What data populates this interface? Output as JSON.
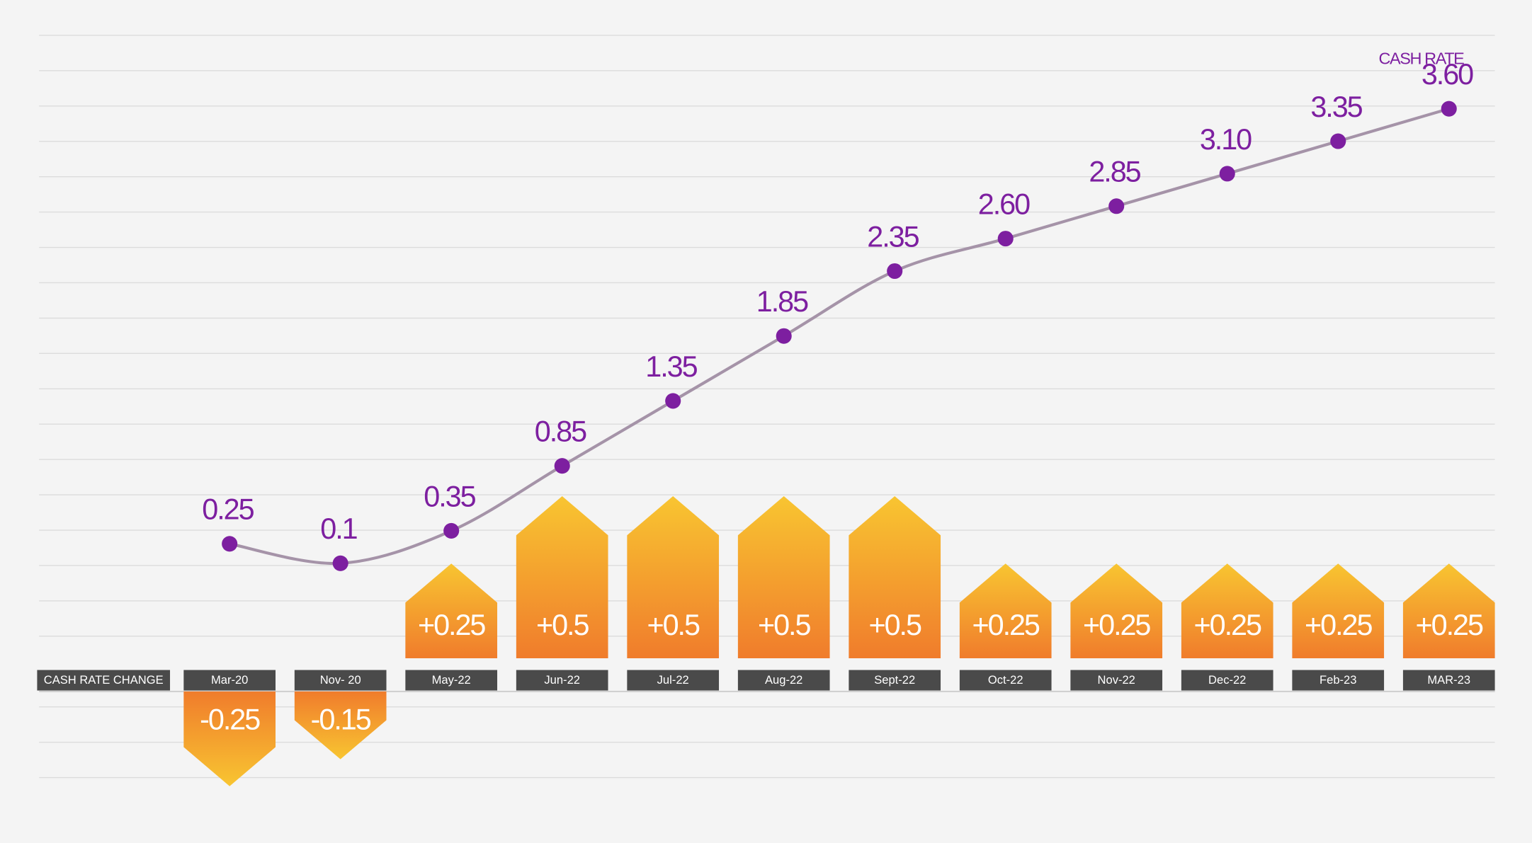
{
  "chart_data": {
    "type": "combo",
    "categories": [
      "Mar-20",
      "Nov- 20",
      "May-22",
      "Jun-22",
      "Jul-22",
      "Aug-22",
      "Sept-22",
      "Oct-22",
      "Nov-22",
      "Dec-22",
      "Feb-23",
      "MAR-23"
    ],
    "series": [
      {
        "name": "CASH RATE",
        "type": "line",
        "color": "#7d1fa0",
        "values": [
          0.25,
          0.1,
          0.35,
          0.85,
          1.35,
          1.85,
          2.35,
          2.6,
          2.85,
          3.1,
          3.35,
          3.6
        ],
        "value_labels": [
          "0.25",
          "0.1",
          "0.35",
          "0.85",
          "1.35",
          "1.85",
          "2.35",
          "2.60",
          "2.85",
          "3.10",
          "3.35",
          "3.60"
        ]
      },
      {
        "name": "CASH RATE CHANGE",
        "type": "bar",
        "color": "#f07f2a",
        "values": [
          -0.25,
          -0.15,
          0.25,
          0.5,
          0.5,
          0.5,
          0.5,
          0.25,
          0.25,
          0.25,
          0.25,
          0.25
        ],
        "value_labels": [
          "-0.25",
          "-0.15",
          "+0.25",
          "+0.5",
          "+0.5",
          "+0.5",
          "+0.5",
          "+0.25",
          "+0.25",
          "+0.25",
          "+0.25",
          "+0.25"
        ]
      }
    ]
  }
}
